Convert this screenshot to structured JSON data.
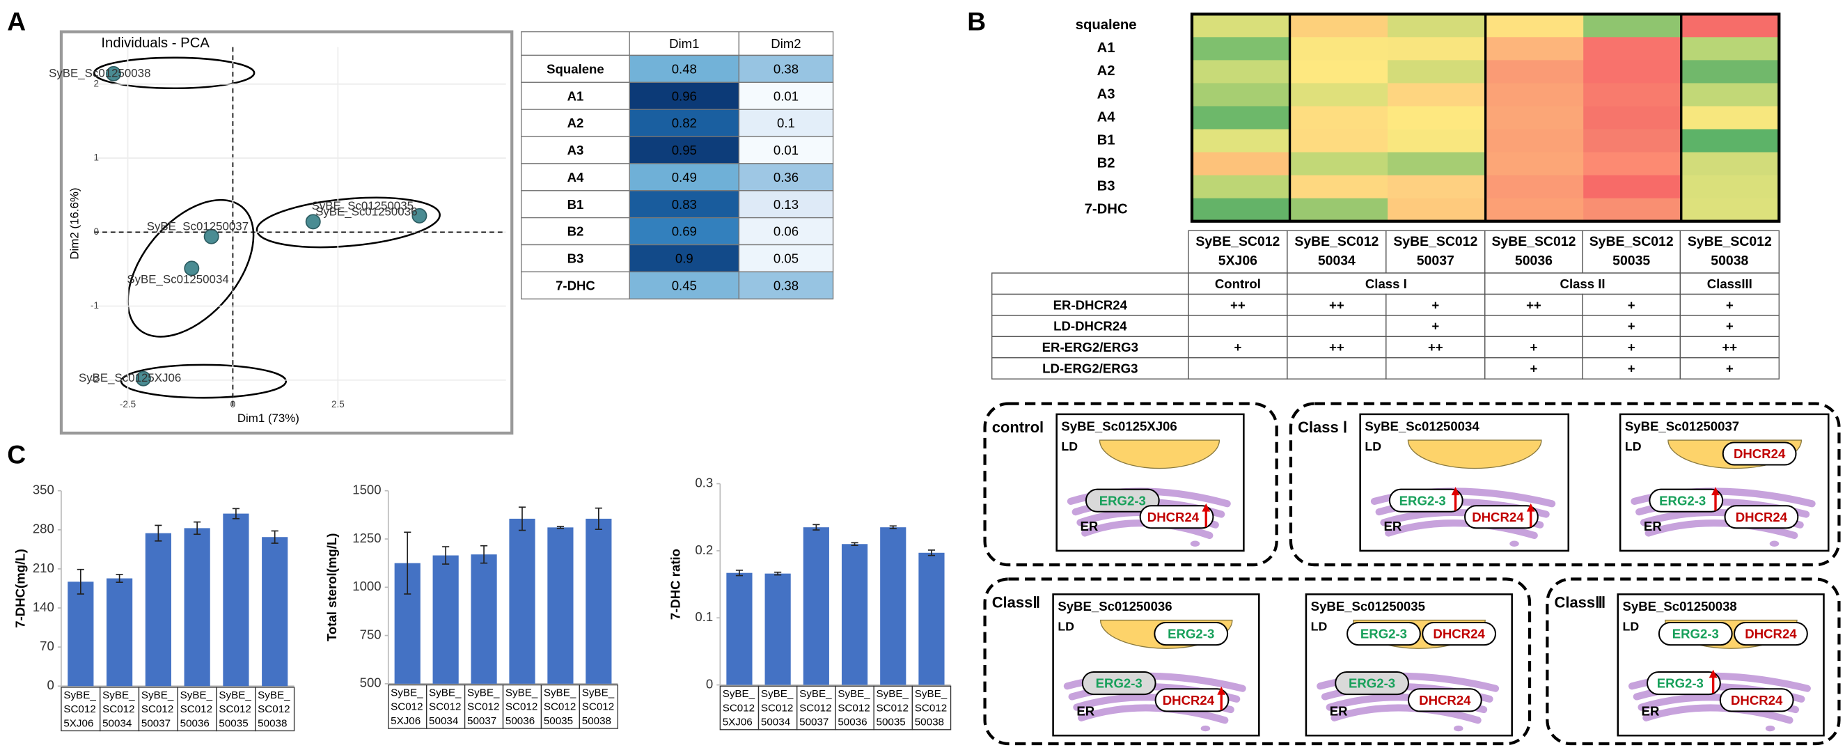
{
  "panels": {
    "a": "A",
    "b": "B",
    "c": "C"
  },
  "chart_data": [
    {
      "type": "scatter",
      "title": "Individuals - PCA",
      "x_label": "Dim1 (73%)",
      "y_label": "Dim2 (16.6%)",
      "labels": [
        "SyBE_Sc01250038",
        "SyBE_Sc01250035",
        "SyBE_Sc01250036",
        "SyBE_Sc01250037",
        "SyBE_Sc01250034",
        "SyBE_Sc0125XJ06"
      ],
      "x": [
        -2.84,
        4.44,
        1.91,
        -0.51,
        -0.98,
        -2.13
      ],
      "y": [
        2.14,
        0.22,
        0.14,
        -0.06,
        -0.49,
        -1.98
      ],
      "color": "#4a8c93",
      "xlim": [
        -3.3,
        6.5
      ],
      "ylim": [
        -2.35,
        2.5
      ],
      "xticks": [
        -2.5,
        0,
        2.5
      ],
      "yticks": [
        -2,
        -1,
        0,
        1,
        2
      ],
      "grid": true
    },
    {
      "type": "bar",
      "y_label": "7-DHC(mg/L)",
      "color": "#4472c4",
      "categories": [
        [
          "SyBE_",
          "SC012",
          "5XJ06"
        ],
        [
          "SyBE_",
          "SC012",
          "50034"
        ],
        [
          "SyBE_",
          "SC012",
          "50037"
        ],
        [
          "SyBE_",
          "SC012",
          "50036"
        ],
        [
          "SyBE_",
          "SC012",
          "50035"
        ],
        [
          "SyBE_",
          "SC012",
          "50038"
        ]
      ],
      "values": [
        187,
        193,
        274,
        283,
        309,
        267
      ],
      "errors": [
        22,
        7,
        14,
        11,
        9,
        11
      ],
      "ylim": [
        0,
        350
      ],
      "yticks": [
        0,
        70,
        140,
        210,
        280,
        350
      ]
    },
    {
      "type": "bar",
      "y_label": "Total sterol(mg/L)",
      "color": "#4472c4",
      "categories": [
        [
          "SyBE_",
          "SC012",
          "5XJ06"
        ],
        [
          "SyBE_",
          "SC012",
          "50034"
        ],
        [
          "SyBE_",
          "SC012",
          "50037"
        ],
        [
          "SyBE_",
          "SC012",
          "50036"
        ],
        [
          "SyBE_",
          "SC012",
          "50035"
        ],
        [
          "SyBE_",
          "SC012",
          "50038"
        ]
      ],
      "values": [
        1125,
        1165,
        1170,
        1355,
        1310,
        1355
      ],
      "errors": [
        160,
        45,
        45,
        60,
        5,
        55
      ],
      "ylim": [
        500,
        1500
      ],
      "yticks": [
        500,
        750,
        1000,
        1250,
        1500
      ]
    },
    {
      "type": "bar",
      "y_label": "7-DHC ratio",
      "color": "#4472c4",
      "categories": [
        [
          "SyBE_",
          "SC012",
          "5XJ06"
        ],
        [
          "SyBE_",
          "SC012",
          "50034"
        ],
        [
          "SyBE_",
          "SC012",
          "50037"
        ],
        [
          "SyBE_",
          "SC012",
          "50036"
        ],
        [
          "SyBE_",
          "SC012",
          "50035"
        ],
        [
          "SyBE_",
          "SC012",
          "50038"
        ]
      ],
      "values": [
        0.167,
        0.166,
        0.235,
        0.21,
        0.235,
        0.197
      ],
      "errors": [
        0.004,
        0.002,
        0.004,
        0.002,
        0.002,
        0.004
      ],
      "ylim": [
        0,
        0.3
      ],
      "yticks": [
        0,
        0.1,
        0.2,
        0.3
      ]
    },
    {
      "type": "heatmap",
      "rows": [
        "squalene",
        "A1",
        "A2",
        "A3",
        "A4",
        "B1",
        "B2",
        "B3",
        "7-DHC"
      ],
      "colors": [
        [
          "#d9df7a",
          "#fdd07b",
          "#d5dc79",
          "#fee17f",
          "#8fc56f",
          "#f66d69"
        ],
        [
          "#7fc06e",
          "#fbe67f",
          "#f9e57f",
          "#fdb57b",
          "#f8736c",
          "#b8d676"
        ],
        [
          "#c8da78",
          "#fee880",
          "#d4dc79",
          "#fa9b75",
          "#f8726c",
          "#71b86b"
        ],
        [
          "#a7ce72",
          "#dfe07b",
          "#fed580",
          "#fba276",
          "#f87b6d",
          "#c2d877"
        ],
        [
          "#6db86a",
          "#fedd80",
          "#fee880",
          "#fba677",
          "#f6756b",
          "#f7e77e"
        ],
        [
          "#e1e37d",
          "#fedb80",
          "#f9e77f",
          "#fba276",
          "#f67e6e",
          "#5db368"
        ],
        [
          "#fdc27a",
          "#c2d877",
          "#a6cd73",
          "#fca677",
          "#fc8a72",
          "#d2dc7a"
        ],
        [
          "#bdd675",
          "#fed880",
          "#fed081",
          "#fb9a75",
          "#f76b68",
          "#dae07b"
        ],
        [
          "#64b368",
          "#9ac870",
          "#feca7d",
          "#fca075",
          "#f98f72",
          "#dde17c"
        ]
      ]
    }
  ],
  "loadings": {
    "columns": [
      "Dim1",
      "Dim2"
    ],
    "rows": [
      {
        "name": "Squalene",
        "dim1": 0.48,
        "dim2": 0.38
      },
      {
        "name": "A1",
        "dim1": 0.96,
        "dim2": 0.01
      },
      {
        "name": "A2",
        "dim1": 0.82,
        "dim2": 0.1
      },
      {
        "name": "A3",
        "dim1": 0.95,
        "dim2": 0.01
      },
      {
        "name": "A4",
        "dim1": 0.49,
        "dim2": 0.36
      },
      {
        "name": "B1",
        "dim1": 0.83,
        "dim2": 0.13
      },
      {
        "name": "B2",
        "dim1": 0.69,
        "dim2": 0.06
      },
      {
        "name": "B3",
        "dim1": 0.9,
        "dim2": 0.05
      },
      {
        "name": "7-DHC",
        "dim1": 0.45,
        "dim2": 0.38
      }
    ]
  },
  "strain_table": {
    "columns": [
      [
        "SyBE_SC012",
        "5XJ06"
      ],
      [
        "SyBE_SC012",
        "50034"
      ],
      [
        "SyBE_SC012",
        "50037"
      ],
      [
        "SyBE_SC012",
        "50036"
      ],
      [
        "SyBE_SC012",
        "50035"
      ],
      [
        "SyBE_SC012",
        "50038"
      ]
    ],
    "groups": [
      "Control",
      "Class I",
      null,
      "Class II",
      null,
      "ClassIII"
    ],
    "rows": [
      {
        "name": "ER-DHCR24",
        "cells": [
          "++",
          "++",
          "+",
          "++",
          "+",
          "+"
        ]
      },
      {
        "name": "LD-DHCR24",
        "cells": [
          null,
          null,
          "+",
          null,
          "+",
          "+"
        ]
      },
      {
        "name": "ER-ERG2/ERG3",
        "cells": [
          "+",
          "++",
          "++",
          "+",
          "+",
          "++"
        ]
      },
      {
        "name": "LD-ERG2/ERG3",
        "cells": [
          null,
          null,
          null,
          "+",
          "+",
          "+"
        ]
      }
    ]
  },
  "diagrams": {
    "ld_label": "LD",
    "er_label": "ER",
    "protein_colors": {
      "ERG2-3": "#17a05a",
      "DHCR24": "#c00000"
    },
    "groups": [
      {
        "label": "control",
        "cells": [
          {
            "title": "SyBE_Sc0125XJ06",
            "ld_proteins": [],
            "er_proteins": [
              "ERG2-3",
              "DHCR24"
            ],
            "er_raised": [
              false,
              true
            ]
          }
        ]
      },
      {
        "label": "Class Ⅰ",
        "cells": [
          {
            "title": "SyBE_Sc01250034",
            "ld_proteins": [],
            "er_proteins": [
              "ERG2-3",
              "DHCR24"
            ],
            "er_raised": [
              true,
              true
            ]
          },
          {
            "title": "SyBE_Sc01250037",
            "ld_proteins": [
              "DHCR24"
            ],
            "er_proteins": [
              "ERG2-3",
              "DHCR24"
            ],
            "er_raised": [
              true,
              false
            ]
          }
        ]
      },
      {
        "label": "ClassⅡ",
        "cells": [
          {
            "title": "SyBE_Sc01250036",
            "ld_proteins": [
              "ERG2-3"
            ],
            "er_proteins": [
              "ERG2-3",
              "DHCR24"
            ],
            "er_raised": [
              false,
              true
            ]
          },
          {
            "title": "SyBE_Sc01250035",
            "ld_proteins": [
              "ERG2-3",
              "DHCR24"
            ],
            "er_proteins": [
              "ERG2-3",
              "DHCR24"
            ],
            "er_raised": [
              false,
              false
            ]
          }
        ]
      },
      {
        "label": "ClassⅢ",
        "cells": [
          {
            "title": "SyBE_Sc01250038",
            "ld_proteins": [
              "ERG2-3",
              "DHCR24"
            ],
            "er_proteins": [
              "ERG2-3",
              "DHCR24"
            ],
            "er_raised": [
              true,
              false
            ]
          }
        ]
      }
    ]
  }
}
